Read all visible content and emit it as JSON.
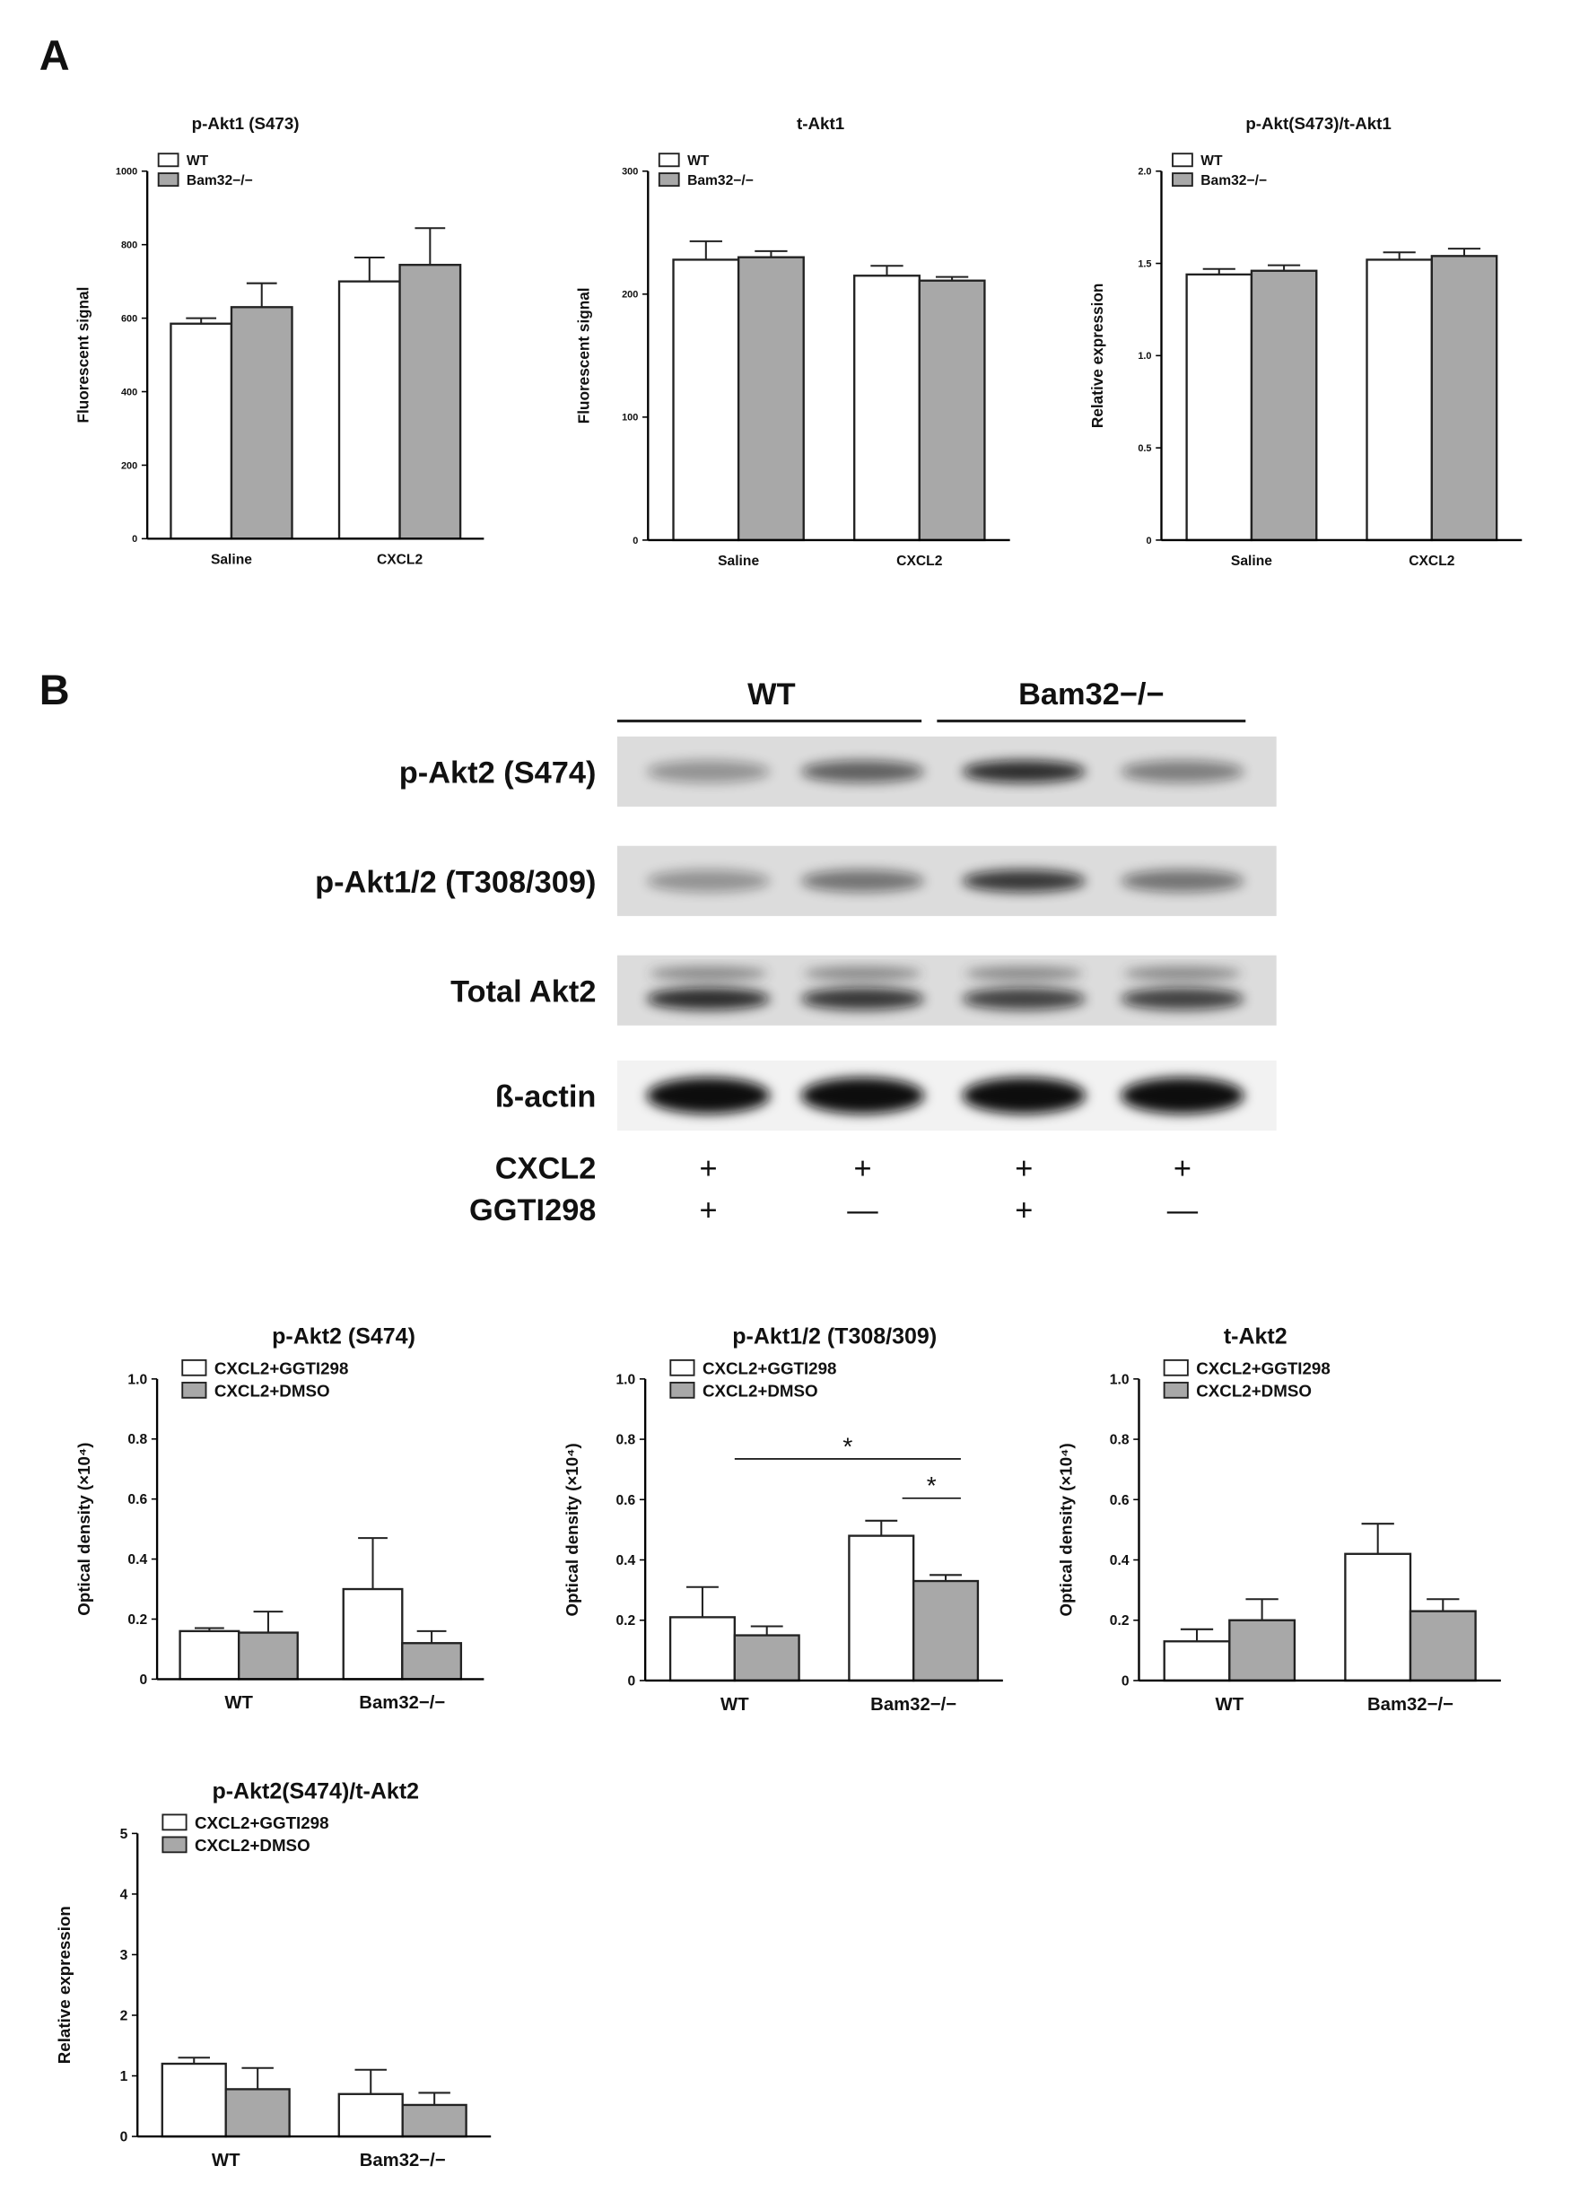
{
  "panel_labels": [
    "A",
    "B"
  ],
  "blot": {
    "groups": [
      "WT",
      "Bam32−/−"
    ],
    "rows": [
      "p-Akt2 (S474)",
      "p-Akt1/2 (T308/309)",
      "Total Akt2",
      "ß-actin"
    ],
    "treatments": [
      {
        "name": "CXCL2",
        "signs": [
          "+",
          "+",
          "+",
          "+"
        ]
      },
      {
        "name": "GGTI298",
        "signs": [
          "+",
          "—",
          "+",
          "—"
        ]
      }
    ]
  },
  "chart_data": [
    {
      "type": "bar",
      "title": "p-Akt1 (S473)",
      "ylabel": "Fluorescent signal",
      "categories": [
        "Saline",
        "CXCL2"
      ],
      "series": [
        {
          "name": "WT",
          "color": "#ffffff",
          "values": [
            585,
            700
          ],
          "errors": [
            15,
            65
          ]
        },
        {
          "name": "Bam32−/−",
          "color": "#a8a8a8",
          "values": [
            630,
            745
          ],
          "errors": [
            65,
            100
          ]
        }
      ],
      "ylim": [
        0,
        1000
      ],
      "yticks": [
        0,
        200,
        400,
        600,
        800,
        1000
      ]
    },
    {
      "type": "bar",
      "title": "t-Akt1",
      "ylabel": "Fluorescent signal",
      "categories": [
        "Saline",
        "CXCL2"
      ],
      "series": [
        {
          "name": "WT",
          "color": "#ffffff",
          "values": [
            228,
            215
          ],
          "errors": [
            15,
            8
          ]
        },
        {
          "name": "Bam32−/−",
          "color": "#a8a8a8",
          "values": [
            230,
            211
          ],
          "errors": [
            5,
            3
          ]
        }
      ],
      "ylim": [
        0,
        300
      ],
      "yticks": [
        0,
        100,
        200,
        300
      ]
    },
    {
      "type": "bar",
      "title": "p-Akt(S473)/t-Akt1",
      "ylabel": "Relative expression",
      "categories": [
        "Saline",
        "CXCL2"
      ],
      "series": [
        {
          "name": "WT",
          "color": "#ffffff",
          "values": [
            1.44,
            1.52
          ],
          "errors": [
            0.03,
            0.04
          ]
        },
        {
          "name": "Bam32−/−",
          "color": "#a8a8a8",
          "values": [
            1.46,
            1.54
          ],
          "errors": [
            0.03,
            0.04
          ]
        }
      ],
      "ylim": [
        0,
        2
      ],
      "yticks": [
        0,
        {
          "value": 0.5,
          "label": "0.5"
        },
        {
          "value": 1,
          "label": "1.0"
        },
        {
          "value": 1.5,
          "label": "1.5"
        },
        {
          "value": 2,
          "label": "2.0"
        }
      ]
    },
    {
      "type": "bar",
      "title": "p-Akt2 (S474)",
      "ylabel": "Optical density (×10⁴)",
      "categories": [
        "WT",
        "Bam32−/−"
      ],
      "series": [
        {
          "name": "CXCL2+GGTI298",
          "color": "#ffffff",
          "values": [
            0.16,
            0.3
          ],
          "errors": [
            0.01,
            0.17
          ]
        },
        {
          "name": "CXCL2+DMSO",
          "color": "#a8a8a8",
          "values": [
            0.155,
            0.12
          ],
          "errors": [
            0.07,
            0.04
          ]
        }
      ],
      "ylim": [
        0,
        1
      ],
      "yticks": [
        0,
        0.2,
        0.4,
        0.6,
        0.8,
        {
          "value": 1,
          "label": "1.0"
        }
      ]
    },
    {
      "type": "bar",
      "title": "p-Akt1/2 (T308/309)",
      "ylabel": "Optical density (×10⁴)",
      "categories": [
        "WT",
        "Bam32−/−"
      ],
      "series": [
        {
          "name": "CXCL2+GGTI298",
          "color": "#ffffff",
          "values": [
            0.21,
            0.48
          ],
          "errors": [
            0.1,
            0.05
          ]
        },
        {
          "name": "CXCL2+DMSO",
          "color": "#a8a8a8",
          "values": [
            0.15,
            0.33
          ],
          "errors": [
            0.03,
            0.02
          ]
        }
      ],
      "annotations": [
        "*",
        "*"
      ],
      "ylim": [
        0,
        1
      ],
      "yticks": [
        0,
        0.2,
        0.4,
        0.6,
        0.8,
        {
          "value": 1,
          "label": "1.0"
        }
      ]
    },
    {
      "type": "bar",
      "title": "t-Akt2",
      "ylabel": "Optical density (×10⁴)",
      "categories": [
        "WT",
        "Bam32−/−"
      ],
      "series": [
        {
          "name": "CXCL2+GGTI298",
          "color": "#ffffff",
          "values": [
            0.13,
            0.42
          ],
          "errors": [
            0.04,
            0.1
          ]
        },
        {
          "name": "CXCL2+DMSO",
          "color": "#a8a8a8",
          "values": [
            0.2,
            0.23
          ],
          "errors": [
            0.07,
            0.04
          ]
        }
      ],
      "ylim": [
        0,
        1
      ],
      "yticks": [
        0,
        0.2,
        0.4,
        0.6,
        0.8,
        {
          "value": 1,
          "label": "1.0"
        }
      ]
    },
    {
      "type": "bar",
      "title": "p-Akt2(S474)/t-Akt2",
      "ylabel": "Relative expression",
      "categories": [
        "WT",
        "Bam32−/−"
      ],
      "series": [
        {
          "name": "CXCL2+GGTI298",
          "color": "#ffffff",
          "values": [
            1.2,
            0.7
          ],
          "errors": [
            0.1,
            0.4
          ]
        },
        {
          "name": "CXCL2+DMSO",
          "color": "#a8a8a8",
          "values": [
            0.78,
            0.52
          ],
          "errors": [
            0.35,
            0.2
          ]
        }
      ],
      "ylim": [
        0,
        5
      ],
      "yticks": [
        0,
        1,
        2,
        3,
        4,
        5
      ]
    }
  ]
}
